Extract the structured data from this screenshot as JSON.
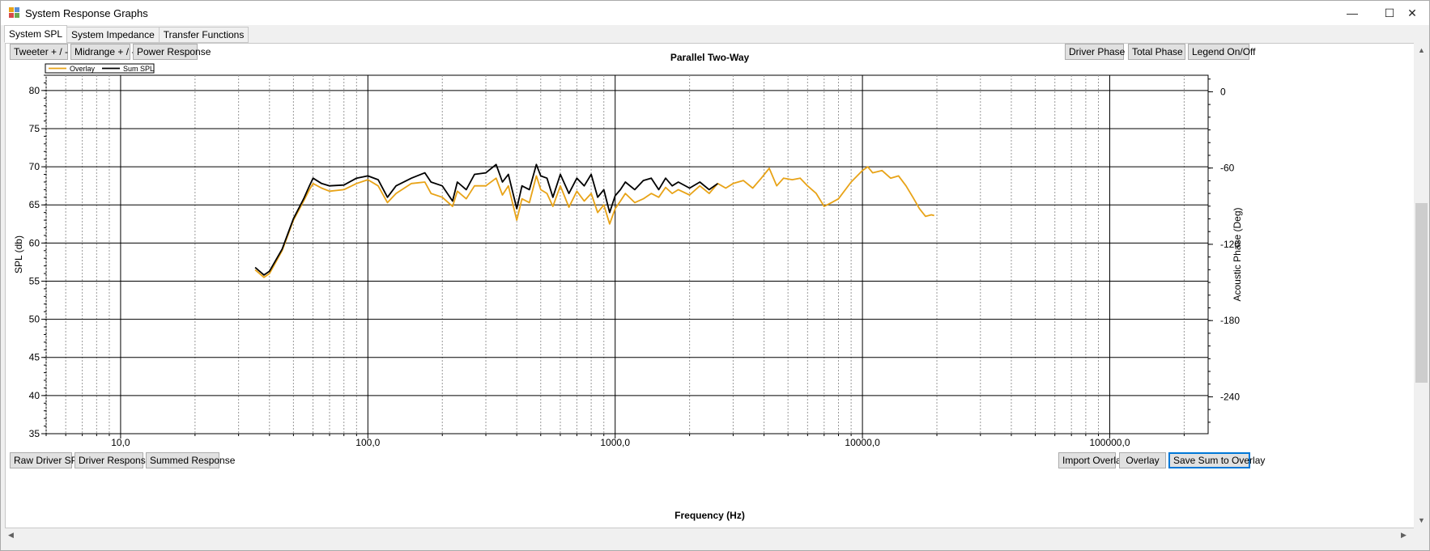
{
  "window": {
    "title": "System Response Graphs",
    "minimize": "—",
    "maximize": "☐",
    "close": "✕"
  },
  "tabs": [
    "System SPL",
    "System Impedance",
    "Transfer Functions"
  ],
  "top_buttons_left": [
    "Tweeter + / -",
    "Midrange + / -",
    "Power Response"
  ],
  "top_buttons_right": [
    "Driver Phase",
    "Total Phase",
    "Legend On/Off"
  ],
  "bottom_buttons_left": [
    "Raw Driver SPL",
    "Driver Responses",
    "Summed Response"
  ],
  "bottom_buttons_right": [
    "Import Overlay",
    "Overlay",
    "Save Sum to Overlay"
  ],
  "colors": {
    "overlay": "#e8a317",
    "sum": "#000000",
    "focus": "#0078d7"
  },
  "chart_data": {
    "type": "line",
    "title": "Parallel Two-Way",
    "xlabel": "Frequency (Hz)",
    "ylabel": "SPL (db)",
    "y2label": "Acoustic Phase (Deg)",
    "xscale": "log",
    "xlim": [
      5,
      250000
    ],
    "ylim": [
      35,
      82
    ],
    "y2lim": [
      -269,
      13
    ],
    "x_ticks": [
      "10,0",
      "100,0",
      "1000,0",
      "10000,0",
      "100000,0"
    ],
    "x_tick_values": [
      10,
      100,
      1000,
      10000,
      100000
    ],
    "y_ticks": [
      35,
      40,
      45,
      50,
      55,
      60,
      65,
      70,
      75,
      80
    ],
    "y2_ticks": [
      0,
      -60,
      -120,
      -180,
      -240
    ],
    "grid": true,
    "legend": {
      "placement": "top-left"
    },
    "series": [
      {
        "name": "Overlay",
        "color": "#e8a317",
        "x": [
          35,
          38,
          40,
          45,
          50,
          55,
          58,
          60,
          65,
          70,
          80,
          90,
          100,
          110,
          120,
          130,
          150,
          170,
          180,
          200,
          220,
          230,
          250,
          270,
          300,
          330,
          350,
          370,
          400,
          420,
          450,
          480,
          500,
          530,
          560,
          600,
          650,
          700,
          750,
          800,
          850,
          900,
          950,
          1000,
          1050,
          1100,
          1200,
          1300,
          1400,
          1500,
          1600,
          1700,
          1800,
          2000,
          2200,
          2400,
          2600,
          2800,
          3000,
          3300,
          3600,
          3900,
          4200,
          4500,
          4800,
          5200,
          5600,
          6000,
          6500,
          7000,
          7500,
          8000,
          9000,
          10000,
          10500,
          11000,
          12000,
          13000,
          14000,
          15000,
          16000,
          17000,
          18000,
          19000,
          19500
        ],
        "values": [
          56.5,
          55.5,
          56.0,
          59.0,
          63.0,
          65.5,
          67.0,
          67.8,
          67.2,
          66.8,
          67.0,
          67.8,
          68.3,
          67.5,
          65.3,
          66.5,
          67.8,
          68.0,
          66.5,
          66.0,
          64.8,
          66.8,
          65.8,
          67.5,
          67.5,
          68.5,
          66.3,
          67.5,
          63.0,
          65.8,
          65.3,
          68.8,
          67.0,
          66.5,
          64.8,
          67.5,
          64.7,
          66.8,
          65.5,
          66.5,
          64.0,
          65.0,
          62.5,
          64.5,
          65.5,
          66.5,
          65.3,
          65.8,
          66.5,
          66.0,
          67.3,
          66.5,
          67.0,
          66.3,
          67.5,
          66.5,
          67.8,
          67.2,
          67.8,
          68.2,
          67.2,
          68.5,
          69.8,
          67.5,
          68.5,
          68.3,
          68.5,
          67.5,
          66.5,
          64.8,
          65.3,
          65.8,
          68.0,
          69.5,
          70.0,
          69.2,
          69.5,
          68.5,
          68.8,
          67.5,
          66.0,
          64.5,
          63.5,
          63.7,
          63.6
        ]
      },
      {
        "name": "Sum SPL",
        "color": "#000000",
        "x": [
          35,
          38,
          40,
          45,
          50,
          55,
          58,
          60,
          65,
          70,
          80,
          90,
          100,
          110,
          120,
          130,
          150,
          170,
          180,
          200,
          220,
          230,
          250,
          270,
          300,
          330,
          350,
          370,
          400,
          420,
          450,
          480,
          500,
          530,
          560,
          600,
          650,
          700,
          750,
          800,
          850,
          900,
          950,
          1000,
          1050,
          1100,
          1200,
          1300,
          1400,
          1500,
          1600,
          1700,
          1800,
          2000,
          2200,
          2400,
          2600
        ],
        "values": [
          56.8,
          55.8,
          56.3,
          59.2,
          63.2,
          65.8,
          67.5,
          68.5,
          67.8,
          67.5,
          67.6,
          68.5,
          68.8,
          68.3,
          66.0,
          67.5,
          68.5,
          69.2,
          68.0,
          67.5,
          65.5,
          68.0,
          67.0,
          69.0,
          69.2,
          70.3,
          68.0,
          69.0,
          64.5,
          67.5,
          67.0,
          70.3,
          68.8,
          68.5,
          66.0,
          69.0,
          66.5,
          68.5,
          67.5,
          69.0,
          66.0,
          67.0,
          64.0,
          66.2,
          67.0,
          68.0,
          67.0,
          68.2,
          68.5,
          67.0,
          68.5,
          67.5,
          68.0,
          67.2,
          68.0,
          67.0,
          67.8
        ]
      }
    ]
  }
}
